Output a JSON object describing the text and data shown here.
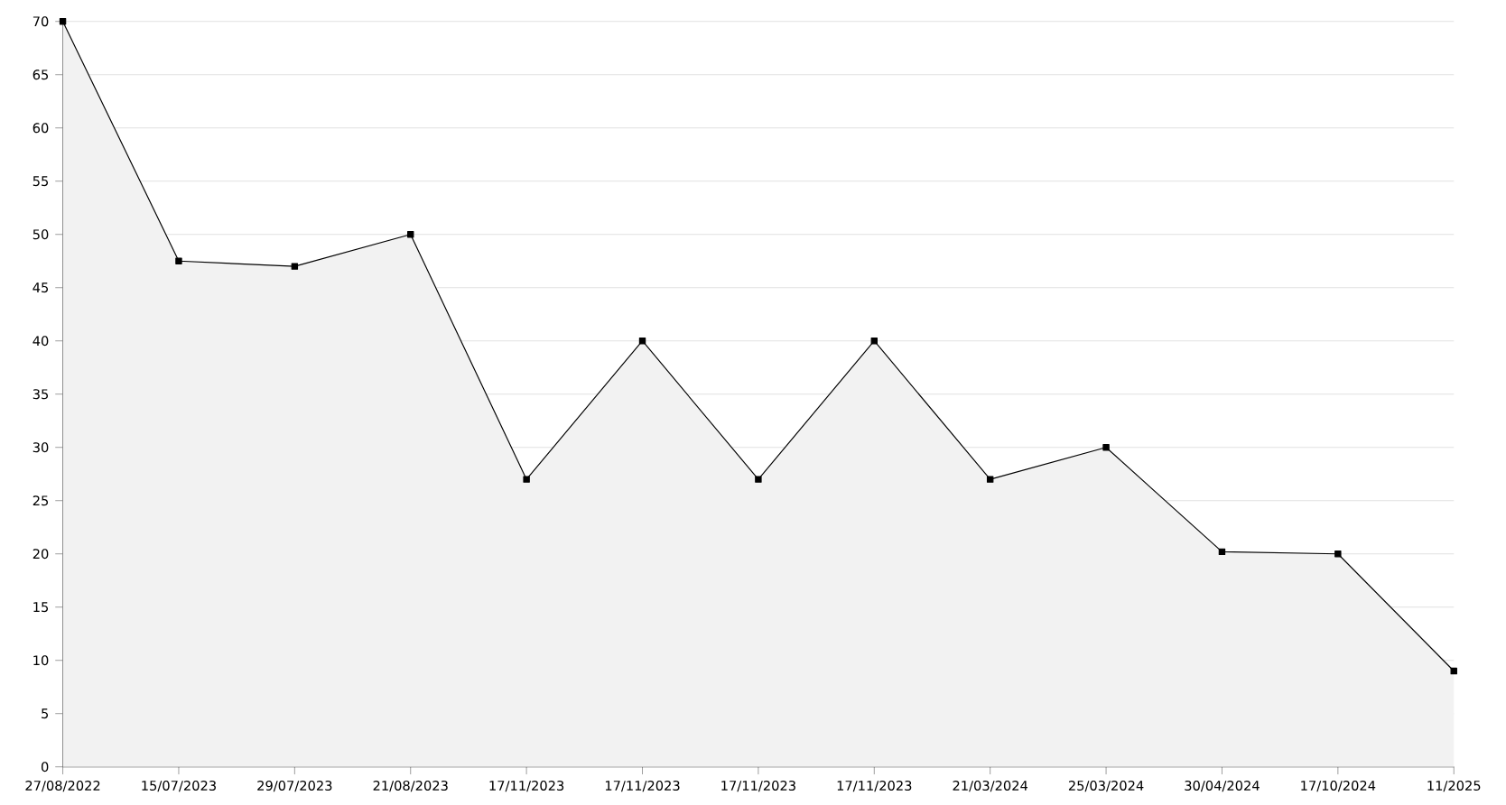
{
  "chart_data": {
    "type": "area",
    "categories": [
      "27/08/2022",
      "15/07/2023",
      "29/07/2023",
      "21/08/2023",
      "17/11/2023",
      "17/11/2023",
      "17/11/2023",
      "17/11/2023",
      "21/03/2024",
      "25/03/2024",
      "30/04/2024",
      "17/10/2024",
      "11/2025"
    ],
    "values": [
      70,
      47.5,
      47,
      50,
      27,
      40,
      27,
      40,
      27,
      30,
      20.2,
      20,
      9
    ],
    "color": "#f2f2f2",
    "ylim": [
      0,
      70
    ],
    "yticks": [
      0,
      5,
      10,
      15,
      20,
      25,
      30,
      35,
      40,
      45,
      50,
      55,
      60,
      65,
      70
    ],
    "grid": "y",
    "marker": "square"
  }
}
